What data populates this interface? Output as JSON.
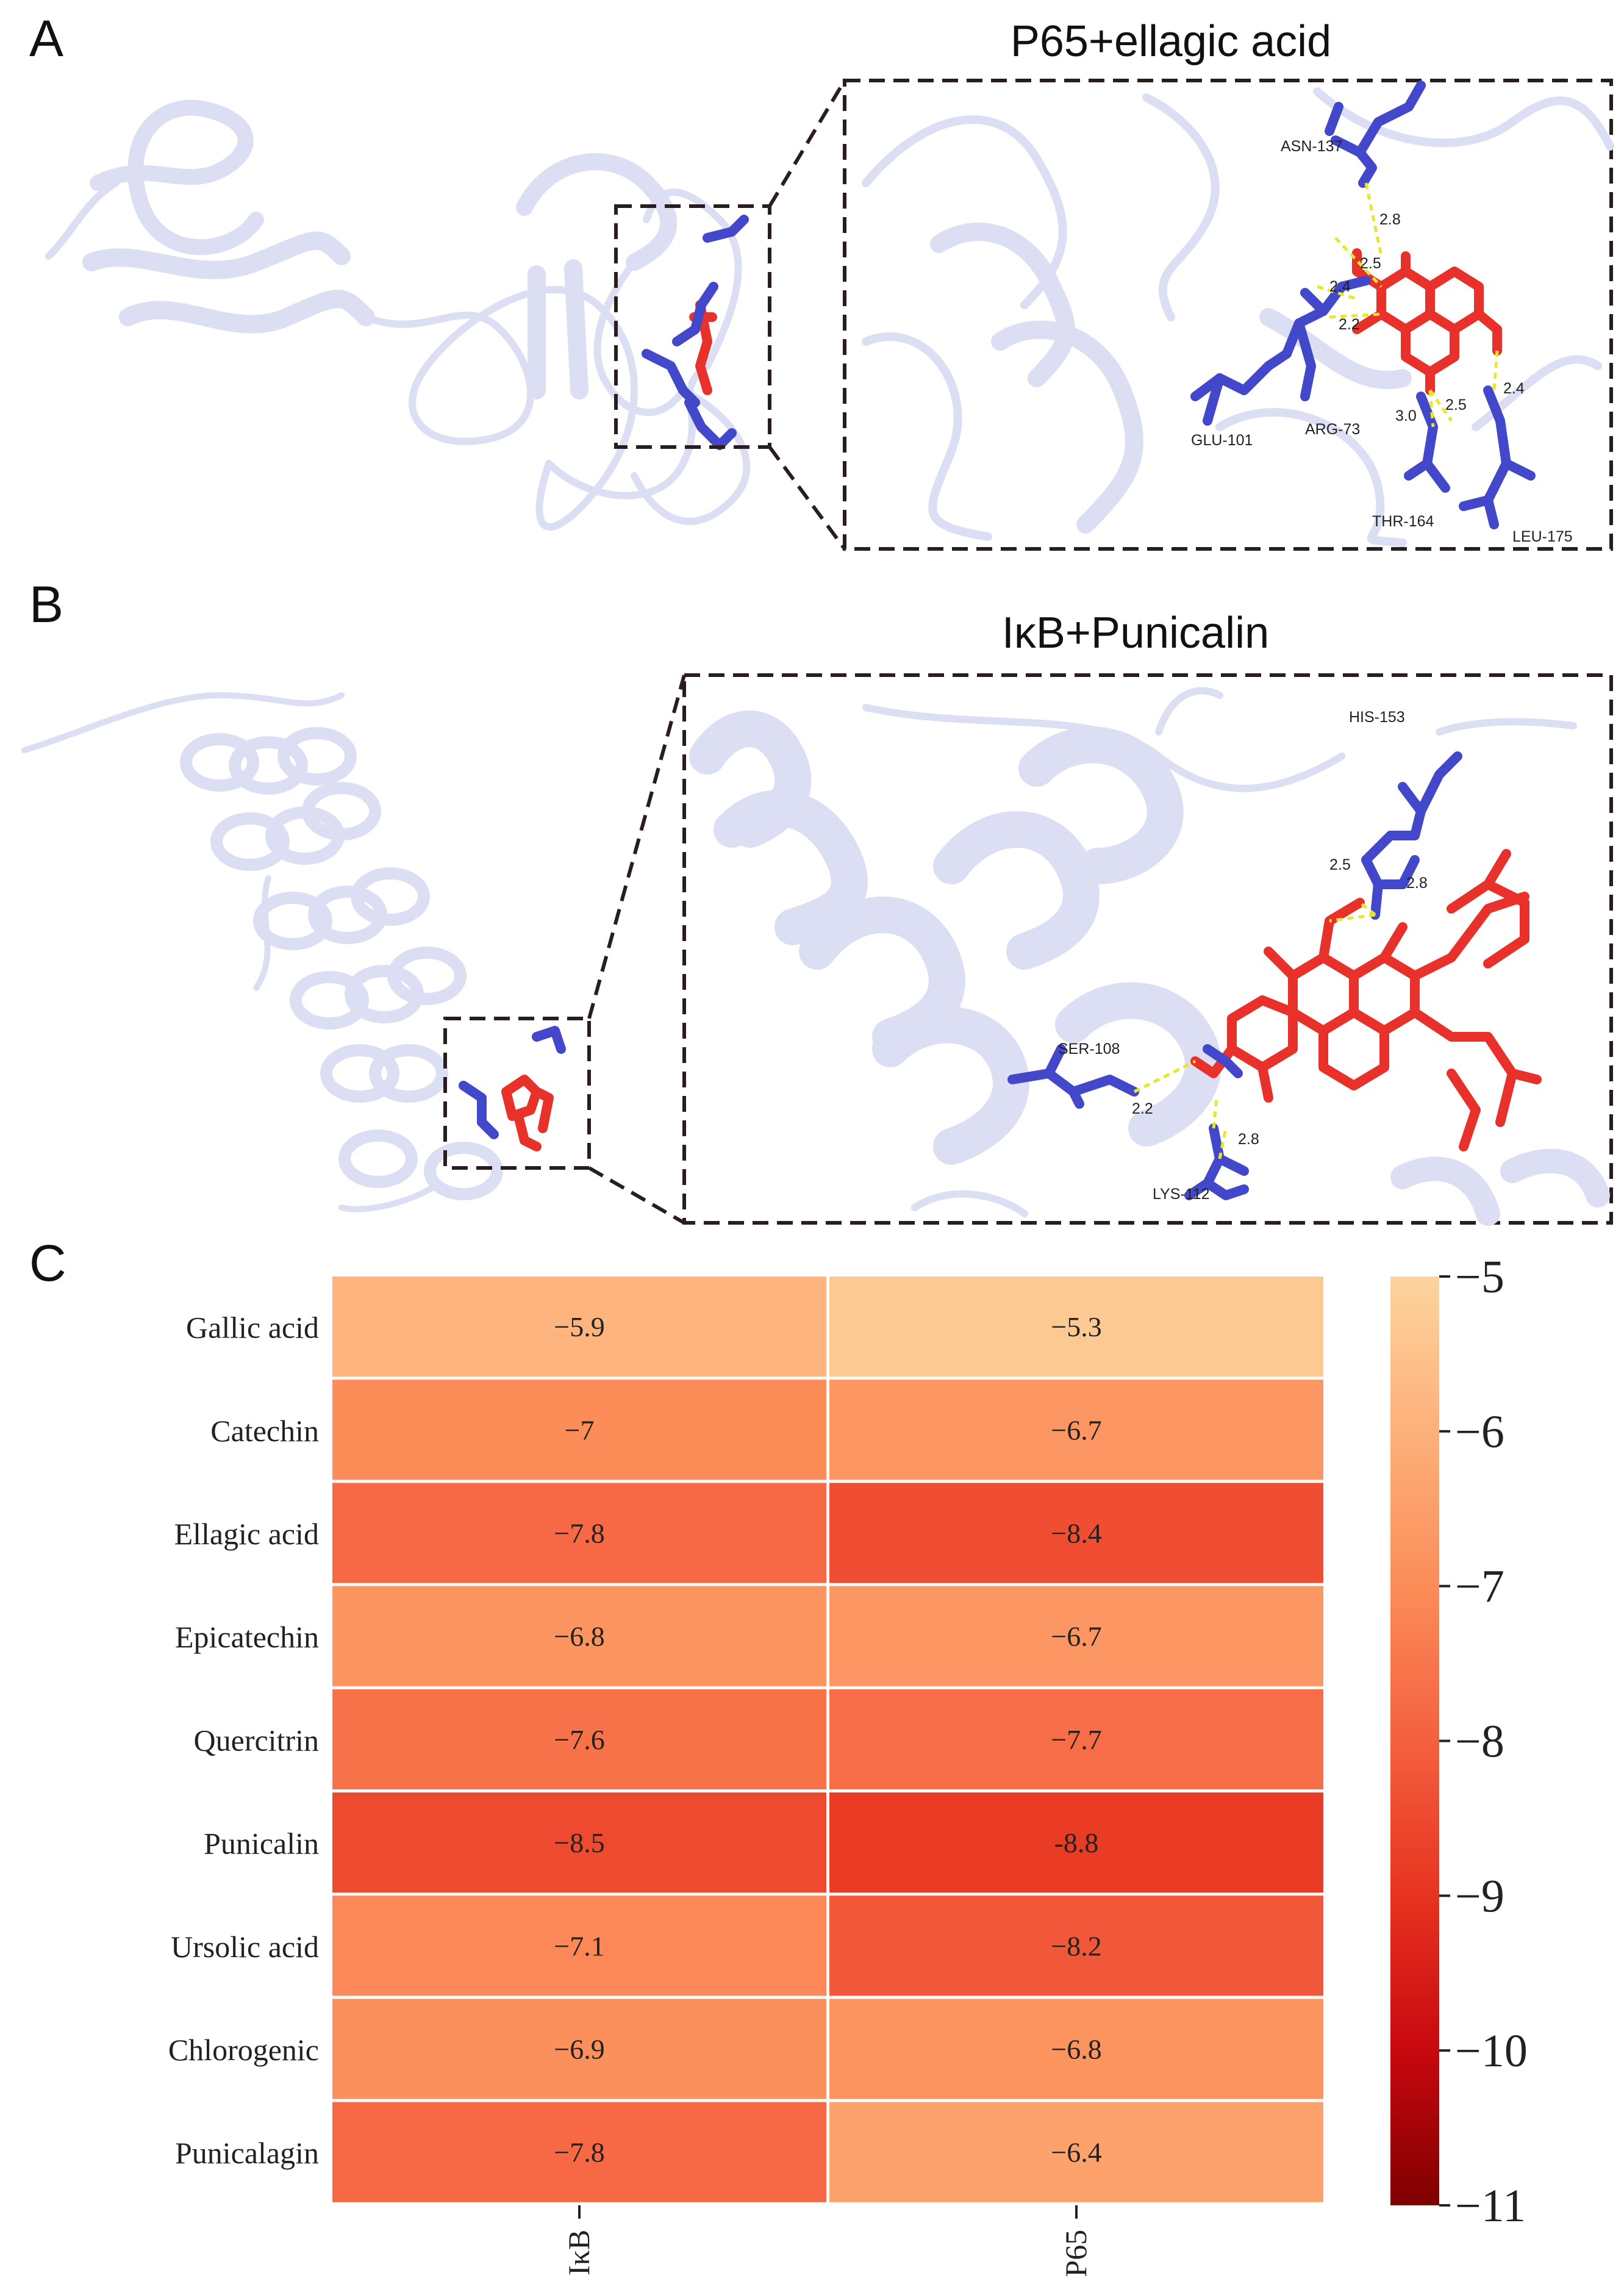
{
  "panels": {
    "a": {
      "letter": "A",
      "title": "P65+ellagic acid",
      "residues": [
        "ASN-137",
        "GLU-101",
        "ARG-73",
        "THR-164",
        "LEU-175"
      ],
      "distances": [
        "2.8",
        "2.5",
        "2.4",
        "2.2",
        "3.0",
        "2.5",
        "2.4"
      ]
    },
    "b": {
      "letter": "B",
      "title": "IκB+Punicalin",
      "residues": [
        "HIS-153",
        "SER-108",
        "LYS-112"
      ],
      "distances": [
        "2.5",
        "2.8",
        "2.2",
        "2.8"
      ]
    },
    "c": {
      "letter": "C"
    }
  },
  "colors": {
    "protein_ribbon": "#dcdff4",
    "residue_blue": "#4347c9",
    "ligand_red": "#e8312a",
    "hbond_yellow": "#e8e82a"
  },
  "chart_data": {
    "type": "heatmap",
    "rows": [
      "Gallic acid",
      "Catechin",
      "Ellagic acid",
      "Epicatechin",
      "Quercitrin",
      "Punicalin",
      "Ursolic acid",
      "Chlorogenic",
      "Punicalagin"
    ],
    "columns": [
      "IκB",
      "P65"
    ],
    "values": [
      [
        -5.9,
        -5.3
      ],
      [
        -7,
        -6.7
      ],
      [
        -7.8,
        -8.4
      ],
      [
        -6.8,
        -6.7
      ],
      [
        -7.6,
        -7.7
      ],
      [
        -8.5,
        -8.8
      ],
      [
        -7.1,
        -8.2
      ],
      [
        -6.9,
        -6.8
      ],
      [
        -7.8,
        -6.4
      ]
    ],
    "value_labels": [
      [
        "−5.9",
        "−5.3"
      ],
      [
        "−7",
        "−6.7"
      ],
      [
        "−7.8",
        "−8.4"
      ],
      [
        "−6.8",
        "−6.7"
      ],
      [
        "−7.6",
        "−7.7"
      ],
      [
        "−8.5",
        "-8.8"
      ],
      [
        "−7.1",
        "−8.2"
      ],
      [
        "−6.9",
        "−6.8"
      ],
      [
        "−7.8",
        "−6.4"
      ]
    ],
    "colorbar": {
      "range": [
        -11,
        -5
      ],
      "tick_values": [
        -5,
        -6,
        -7,
        -8,
        -9,
        -10,
        -11
      ],
      "tick_labels": [
        "−5",
        "−6",
        "−7",
        "−8",
        "−9",
        "−10",
        "−11"
      ],
      "colormap": "OrRd_r"
    }
  }
}
